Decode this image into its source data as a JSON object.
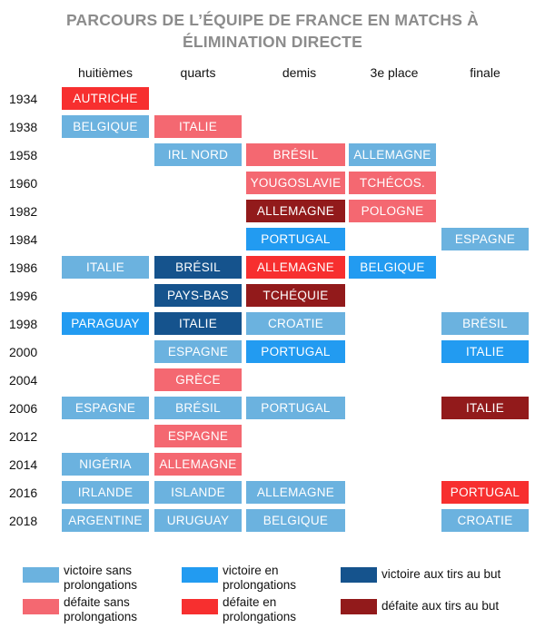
{
  "chart_data": {
    "type": "table",
    "title_lines": [
      "PARCOURS DE L’ÉQUIPE DE FRANCE EN MATCHS À",
      "ÉLIMINATION DIRECTE"
    ],
    "columns": [
      "huitièmes",
      "quarts",
      "demis",
      "3e place",
      "finale"
    ],
    "colors": {
      "win": "#6bb2df",
      "win_et": "#229bf1",
      "win_pen": "#15538d",
      "loss": "#f46871",
      "loss_et": "#f72f2f",
      "loss_pen": "#921a1b"
    },
    "rows": [
      {
        "year": "1934",
        "cells": [
          {
            "text": "AUTRICHE",
            "result": "loss_et"
          },
          null,
          null,
          null,
          null
        ]
      },
      {
        "year": "1938",
        "cells": [
          {
            "text": "BELGIQUE",
            "result": "win"
          },
          {
            "text": "ITALIE",
            "result": "loss"
          },
          null,
          null,
          null
        ]
      },
      {
        "year": "1958",
        "cells": [
          null,
          {
            "text": "IRL NORD",
            "result": "win"
          },
          {
            "text": "BRÉSIL",
            "result": "loss"
          },
          {
            "text": "ALLEMAGNE",
            "result": "win"
          },
          null
        ]
      },
      {
        "year": "1960",
        "cells": [
          null,
          null,
          {
            "text": "YOUGOSLAVIE",
            "result": "loss"
          },
          {
            "text": "TCHÉCOS.",
            "result": "loss"
          },
          null
        ]
      },
      {
        "year": "1982",
        "cells": [
          null,
          null,
          {
            "text": "ALLEMAGNE",
            "result": "loss_pen"
          },
          {
            "text": "POLOGNE",
            "result": "loss"
          },
          null
        ]
      },
      {
        "year": "1984",
        "cells": [
          null,
          null,
          {
            "text": "PORTUGAL",
            "result": "win_et"
          },
          null,
          {
            "text": "ESPAGNE",
            "result": "win"
          }
        ]
      },
      {
        "year": "1986",
        "cells": [
          {
            "text": "ITALIE",
            "result": "win"
          },
          {
            "text": "BRÉSIL",
            "result": "win_pen"
          },
          {
            "text": "ALLEMAGNE",
            "result": "loss_et"
          },
          {
            "text": "BELGIQUE",
            "result": "win_et"
          },
          null
        ]
      },
      {
        "year": "1996",
        "cells": [
          null,
          {
            "text": "PAYS-BAS",
            "result": "win_pen"
          },
          {
            "text": "TCHÉQUIE",
            "result": "loss_pen"
          },
          null,
          null
        ]
      },
      {
        "year": "1998",
        "cells": [
          {
            "text": "PARAGUAY",
            "result": "win_et"
          },
          {
            "text": "ITALIE",
            "result": "win_pen"
          },
          {
            "text": "CROATIE",
            "result": "win"
          },
          null,
          {
            "text": "BRÉSIL",
            "result": "win"
          }
        ]
      },
      {
        "year": "2000",
        "cells": [
          null,
          {
            "text": "ESPAGNE",
            "result": "win"
          },
          {
            "text": "PORTUGAL",
            "result": "win_et"
          },
          null,
          {
            "text": "ITALIE",
            "result": "win_et"
          }
        ]
      },
      {
        "year": "2004",
        "cells": [
          null,
          {
            "text": "GRÈCE",
            "result": "loss"
          },
          null,
          null,
          null
        ]
      },
      {
        "year": "2006",
        "cells": [
          {
            "text": "ESPAGNE",
            "result": "win"
          },
          {
            "text": "BRÉSIL",
            "result": "win"
          },
          {
            "text": "PORTUGAL",
            "result": "win"
          },
          null,
          {
            "text": "ITALIE",
            "result": "loss_pen"
          }
        ]
      },
      {
        "year": "2012",
        "cells": [
          null,
          {
            "text": "ESPAGNE",
            "result": "loss"
          },
          null,
          null,
          null
        ]
      },
      {
        "year": "2014",
        "cells": [
          {
            "text": "NIGÉRIA",
            "result": "win"
          },
          {
            "text": "ALLEMAGNE",
            "result": "loss"
          },
          null,
          null,
          null
        ]
      },
      {
        "year": "2016",
        "cells": [
          {
            "text": "IRLANDE",
            "result": "win"
          },
          {
            "text": "ISLANDE",
            "result": "win"
          },
          {
            "text": "ALLEMAGNE",
            "result": "win"
          },
          null,
          {
            "text": "PORTUGAL",
            "result": "loss_et"
          }
        ]
      },
      {
        "year": "2018",
        "cells": [
          {
            "text": "ARGENTINE",
            "result": "win"
          },
          {
            "text": "URUGUAY",
            "result": "win"
          },
          {
            "text": "BELGIQUE",
            "result": "win"
          },
          null,
          {
            "text": "CROATIE",
            "result": "win"
          }
        ]
      }
    ],
    "legend": [
      {
        "key": "win",
        "lines": [
          "victoire sans",
          "prolongations"
        ]
      },
      {
        "key": "win_et",
        "lines": [
          "victoire en",
          "prolongations"
        ]
      },
      {
        "key": "win_pen",
        "lines": [
          "victoire aux tirs au but"
        ]
      },
      {
        "key": "loss",
        "lines": [
          "défaite sans",
          "prolongations"
        ]
      },
      {
        "key": "loss_et",
        "lines": [
          "défaite en",
          "prolongations"
        ]
      },
      {
        "key": "loss_pen",
        "lines": [
          "défaite aux tirs au but"
        ]
      }
    ]
  }
}
